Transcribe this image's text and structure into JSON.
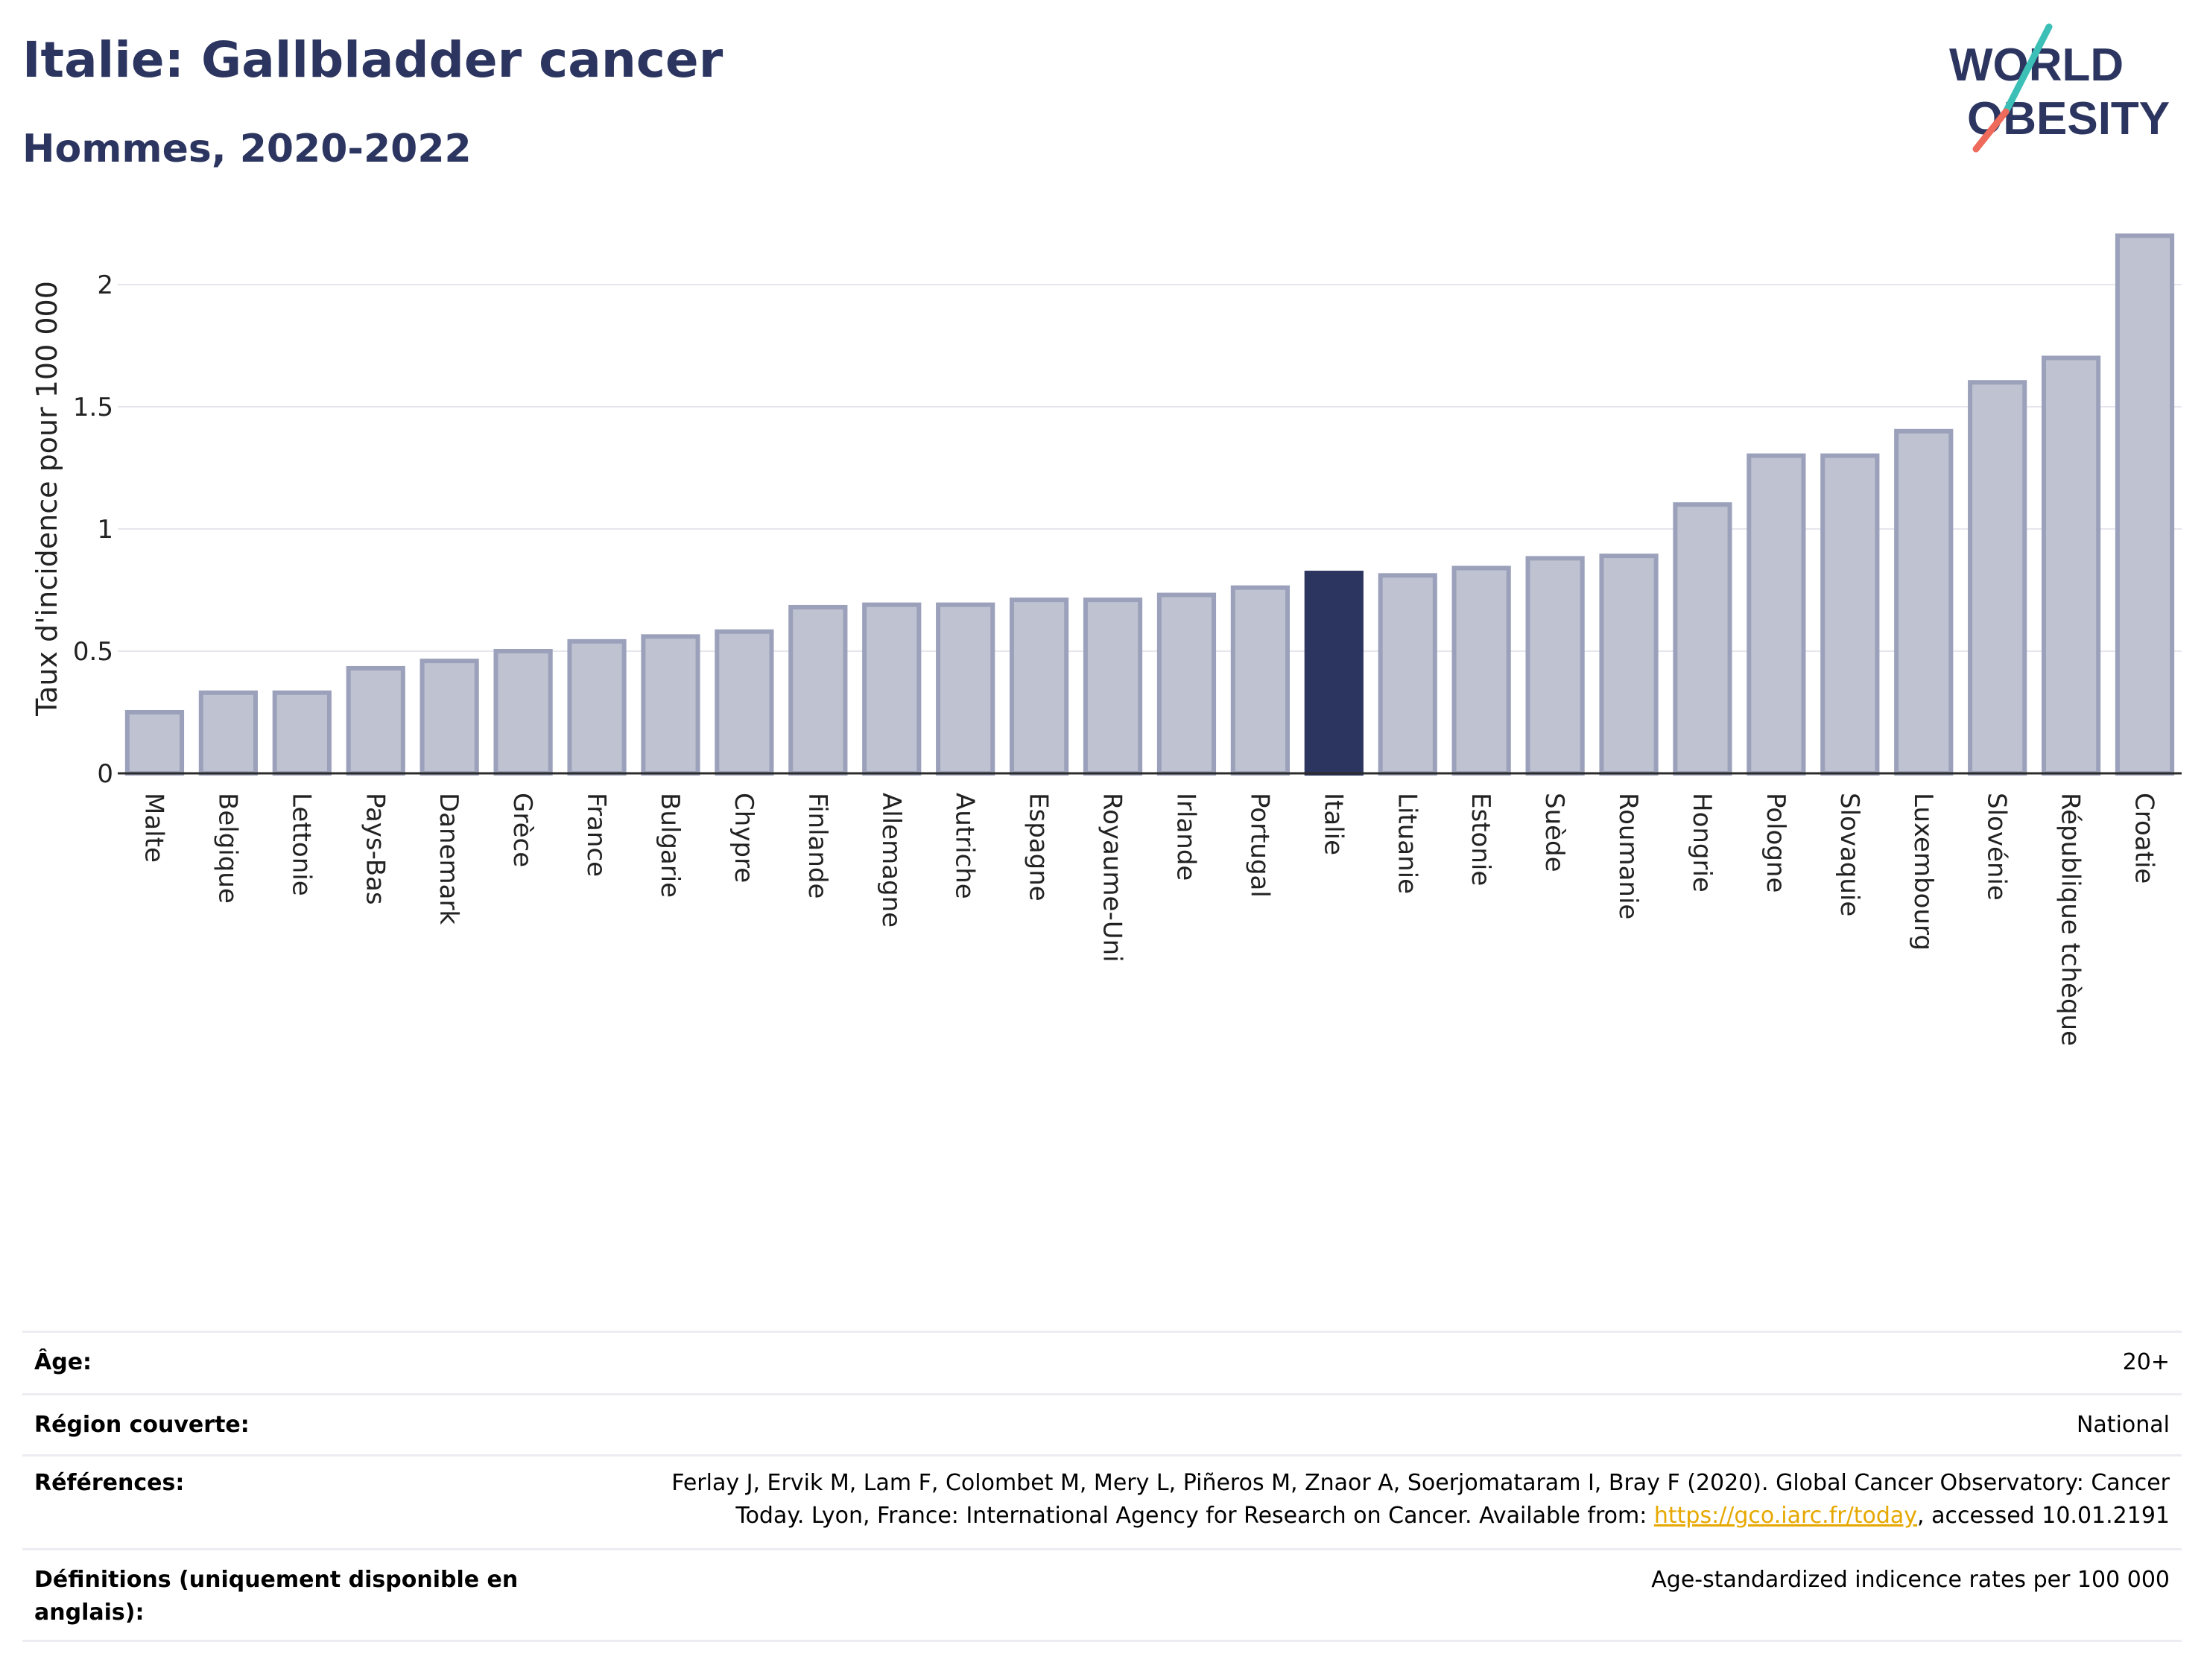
{
  "header": {
    "title": "Italie: Gallbladder cancer",
    "subtitle": "Hommes, 2020-2022"
  },
  "logo": {
    "line1": "WORLD",
    "line2": "OBESITY"
  },
  "chart_data": {
    "type": "bar",
    "title": "Italie: Gallbladder cancer",
    "subtitle": "Hommes, 2020-2022",
    "xlabel": "",
    "ylabel": "Taux d'incidence pour 100 000",
    "ylim": [
      0,
      2.25
    ],
    "yticks": [
      0,
      0.5,
      1,
      1.5,
      2
    ],
    "ytick_labels": [
      "0",
      "0.5",
      "1",
      "1.5",
      "2"
    ],
    "grid": true,
    "highlight": "Italie",
    "colors": {
      "bar": "#bfc2d0",
      "bar_border": "#9ca1bb",
      "highlight": "#2b355f",
      "grid": "#e6e6ee"
    },
    "categories": [
      "Malte",
      "Belgique",
      "Lettonie",
      "Pays-Bas",
      "Danemark",
      "Grèce",
      "France",
      "Bulgarie",
      "Chypre",
      "Finlande",
      "Allemagne",
      "Autriche",
      "Espagne",
      "Royaume-Uni",
      "Irlande",
      "Portugal",
      "Italie",
      "Lituanie",
      "Estonie",
      "Suède",
      "Roumanie",
      "Hongrie",
      "Pologne",
      "Slovaquie",
      "Luxembourg",
      "Slovénie",
      "République tchèque",
      "Croatie"
    ],
    "values": [
      0.25,
      0.33,
      0.33,
      0.43,
      0.46,
      0.5,
      0.54,
      0.56,
      0.58,
      0.68,
      0.69,
      0.69,
      0.71,
      0.71,
      0.73,
      0.76,
      0.82,
      0.81,
      0.84,
      0.88,
      0.89,
      1.1,
      1.3,
      1.3,
      1.4,
      1.6,
      1.7,
      2.2
    ]
  },
  "meta": {
    "rows": [
      {
        "key": "Âge:",
        "value": "20+"
      },
      {
        "key": "Région couverte:",
        "value": "National"
      },
      {
        "key": "Références:",
        "value_line1": "Ferlay J, Ervik M, Lam F, Colombet M, Mery L, Piñeros M, Znaor A, Soerjomataram I, Bray F (2020). Global Cancer Observatory: Cancer",
        "value_line2_pre": "Today. Lyon, France: International Agency for Research on Cancer. Available from: ",
        "value_link": "https://gco.iarc.fr/today",
        "value_line2_post": ", accessed 10.01.2191"
      },
      {
        "key_line1": "Définitions (uniquement disponible en",
        "key_line2": "anglais):",
        "value": "Age-standardized indicence rates per 100 000"
      }
    ]
  }
}
